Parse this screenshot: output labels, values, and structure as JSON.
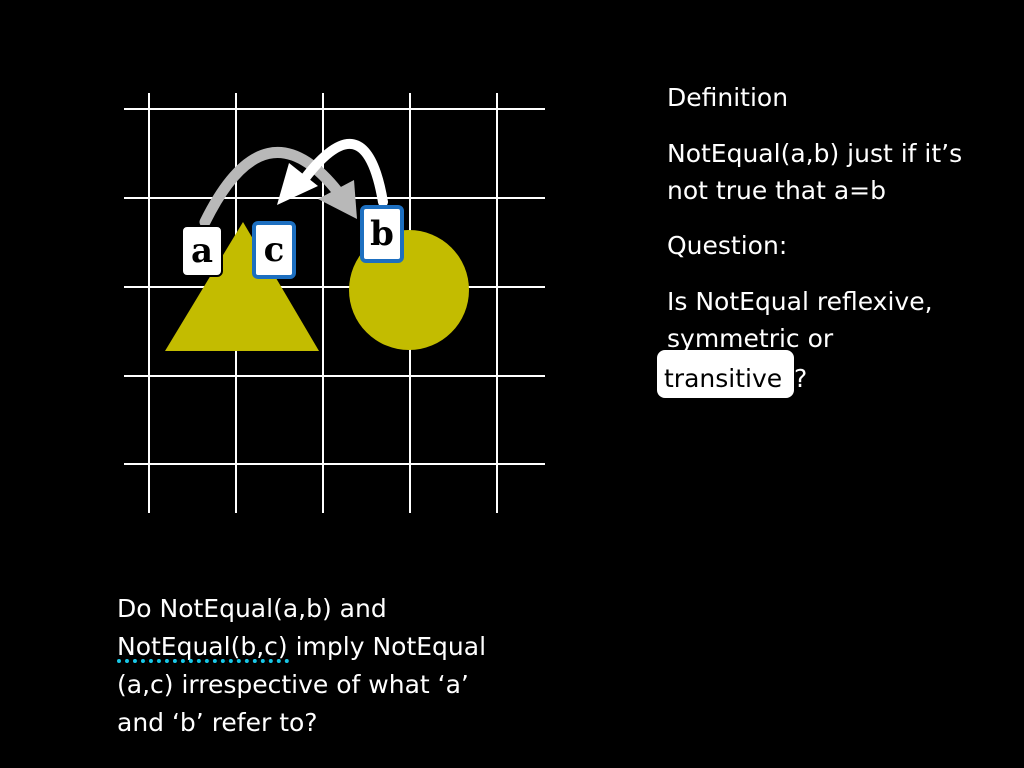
{
  "definition": {
    "heading": "Definition",
    "text": "NotEqual(a,b) just if it’s not true that a=b"
  },
  "question": {
    "heading": "Question:",
    "text": "Is NotEqual reflexive, symmetric or",
    "highlighted_word": "transitive",
    "end_punct": "?"
  },
  "bottom_question": {
    "line1": "Do NotEqual(a,b) and",
    "line2": "NotEqual(b,c) imply NotEqual",
    "line3": "(a,c) irrespective of what ‘a’",
    "line4": "and ‘b’ refer to?"
  },
  "labels": {
    "a": "a",
    "b": "b",
    "c": "c"
  },
  "colors": {
    "background": "#000000",
    "shape_fill": "#c3bc00",
    "grid": "#ffffff",
    "arrow_gray": "#b8b8b8",
    "label_border_blue": "#1d6fc0",
    "squiggle": "#19c7e6"
  }
}
